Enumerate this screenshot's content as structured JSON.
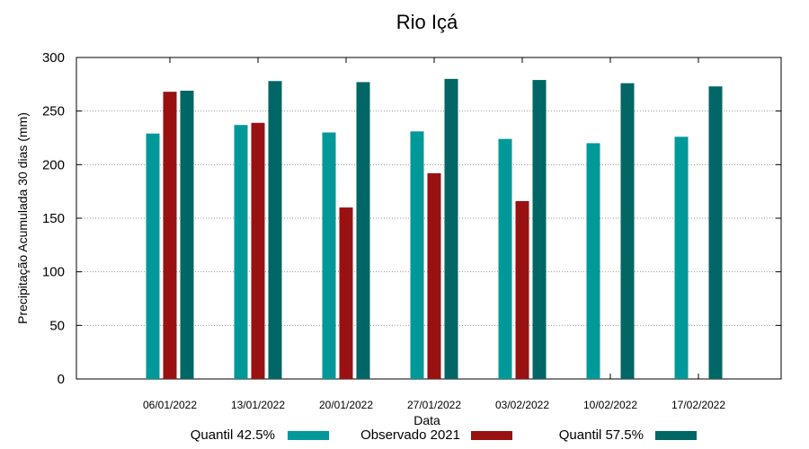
{
  "chart_data": {
    "type": "bar",
    "title": "Rio Içá",
    "xlabel": "Data",
    "ylabel": "Precipitação Acumulada 30 dias (mm)",
    "ylim": [
      0,
      300
    ],
    "yticks": [
      0,
      50,
      100,
      150,
      200,
      250,
      300
    ],
    "grid": true,
    "legend_position": "bottom",
    "categories": [
      "06/01/2022",
      "13/01/2022",
      "20/01/2022",
      "27/01/2022",
      "03/02/2022",
      "10/02/2022",
      "17/02/2022"
    ],
    "series": [
      {
        "name": "Quantil 42.5%",
        "color": "#009999",
        "values": [
          229,
          237,
          230,
          231,
          224,
          220,
          226
        ]
      },
      {
        "name": "Observado 2021",
        "color": "#991111",
        "values": [
          268,
          239,
          160,
          192,
          166,
          null,
          null
        ]
      },
      {
        "name": "Quantil 57.5%",
        "color": "#006666",
        "values": [
          269,
          278,
          277,
          280,
          279,
          276,
          273
        ]
      }
    ]
  }
}
